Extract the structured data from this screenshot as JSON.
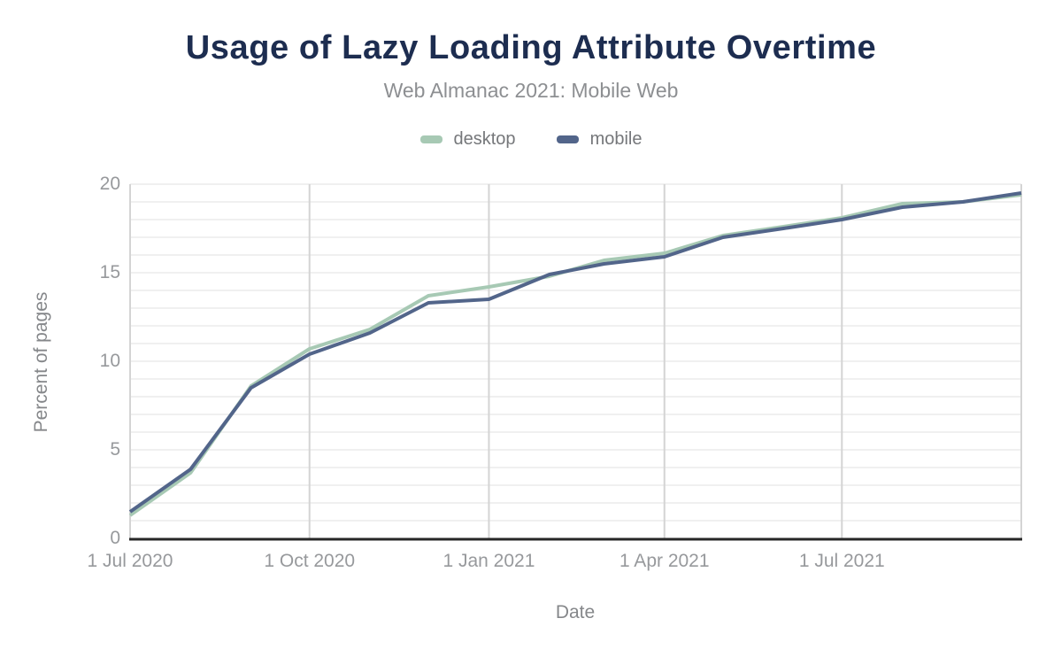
{
  "page": {
    "title": "Usage of Lazy Loading Attribute Overtime",
    "subtitle": "Web Almanac 2021: Mobile Web"
  },
  "legend": {
    "items": [
      {
        "label": "desktop",
        "color": "#a7c9b4"
      },
      {
        "label": "mobile",
        "color": "#52658a"
      }
    ]
  },
  "axes": {
    "x_title": "Date",
    "y_title": "Percent of pages"
  },
  "colors": {
    "title": "#1d2d50",
    "subtitle": "#8d8f92",
    "tick_label": "#97999c",
    "h_gridline": "#f0f0f0",
    "v_gridline": "#d4d4d4",
    "axis_line": "#272727"
  },
  "chart_data": {
    "type": "line",
    "title": "Usage of Lazy Loading Attribute Overtime",
    "subtitle": "Web Almanac 2021: Mobile Web",
    "xlabel": "Date",
    "ylabel": "Percent of pages",
    "ylim": [
      0,
      20
    ],
    "yticks": [
      0,
      5,
      10,
      15,
      20
    ],
    "grid": {
      "horizontal_step": 1,
      "vertical_at_xticks": true,
      "legend_position": "top-center"
    },
    "x": [
      "2020-07-01",
      "2020-08-01",
      "2020-09-01",
      "2020-10-01",
      "2020-11-01",
      "2020-12-01",
      "2021-01-01",
      "2021-02-01",
      "2021-03-01",
      "2021-04-01",
      "2021-05-01",
      "2021-06-01",
      "2021-07-01",
      "2021-08-01",
      "2021-09-01",
      "2021-10-01"
    ],
    "xticks": [
      {
        "date": "2020-07-01",
        "label": "1 Jul 2020"
      },
      {
        "date": "2020-10-01",
        "label": "1 Oct 2020"
      },
      {
        "date": "2021-01-01",
        "label": "1 Jan 2021"
      },
      {
        "date": "2021-04-01",
        "label": "1 Apr 2021"
      },
      {
        "date": "2021-07-01",
        "label": "1 Jul 2021"
      }
    ],
    "series": [
      {
        "name": "desktop",
        "color": "#a7c9b4",
        "values": [
          1.3,
          3.7,
          8.6,
          10.7,
          11.8,
          13.7,
          14.2,
          14.8,
          15.7,
          16.1,
          17.1,
          17.6,
          18.1,
          18.9,
          19.0,
          19.4
        ]
      },
      {
        "name": "mobile",
        "color": "#52658a",
        "values": [
          1.5,
          3.9,
          8.5,
          10.4,
          11.6,
          13.3,
          13.5,
          14.9,
          15.5,
          15.9,
          17.0,
          17.5,
          18.0,
          18.7,
          19.0,
          19.5
        ]
      }
    ]
  }
}
